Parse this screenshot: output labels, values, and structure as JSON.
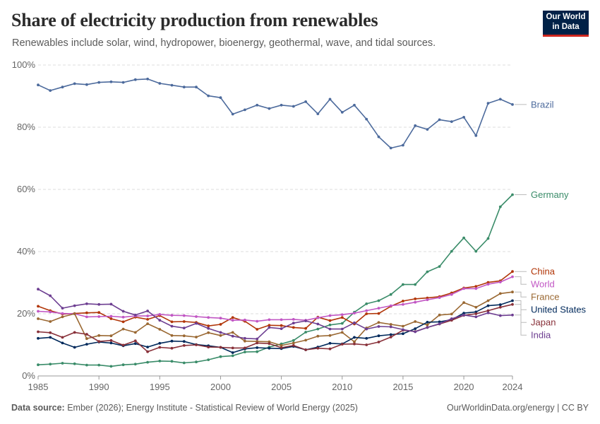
{
  "header": {
    "title": "Share of electricity production from renewables",
    "subtitle": "Renewables include solar, wind, hydropower, bioenergy, geothermal, wave, and tidal sources.",
    "logo_line1": "Our World",
    "logo_line2": "in Data"
  },
  "footer": {
    "source_label": "Data source:",
    "source_text": "Ember (2026); Energy Institute - Statistical Review of World Energy (2025)",
    "right_text": "OurWorldinData.org/energy | CC BY"
  },
  "chart_data": {
    "type": "line",
    "ylim": [
      0,
      100
    ],
    "yticks": [
      0,
      20,
      40,
      60,
      80,
      100
    ],
    "ytick_labels": [
      "0%",
      "20%",
      "40%",
      "60%",
      "80%",
      "100%"
    ],
    "xlim": [
      1985,
      2024
    ],
    "xticks": [
      1985,
      1990,
      1995,
      2000,
      2005,
      2010,
      2015,
      2020,
      2024
    ],
    "grid": true,
    "legend_placement": "right-inline",
    "x": [
      1985,
      1986,
      1987,
      1988,
      1989,
      1990,
      1991,
      1992,
      1993,
      1994,
      1995,
      1996,
      1997,
      1998,
      1999,
      2000,
      2001,
      2002,
      2003,
      2004,
      2005,
      2006,
      2007,
      2008,
      2009,
      2010,
      2011,
      2012,
      2013,
      2014,
      2015,
      2016,
      2017,
      2018,
      2019,
      2020,
      2021,
      2022,
      2023,
      2024
    ],
    "series": [
      {
        "name": "Brazil",
        "color": "#4c6a9c",
        "values": [
          93.6,
          91.8,
          92.9,
          94.0,
          93.7,
          94.4,
          94.6,
          94.4,
          95.3,
          95.5,
          94.1,
          93.5,
          92.9,
          92.9,
          90.1,
          89.5,
          84.2,
          85.6,
          87.1,
          86.0,
          87.1,
          86.7,
          88.2,
          84.3,
          89.0,
          84.8,
          87.1,
          82.6,
          76.9,
          73.3,
          74.2,
          80.5,
          79.3,
          82.4,
          81.8,
          83.2,
          77.3,
          87.7,
          89.0,
          87.3
        ]
      },
      {
        "name": "Germany",
        "color": "#3a8c69",
        "values": [
          3.6,
          3.8,
          4.1,
          3.9,
          3.5,
          3.5,
          3.1,
          3.6,
          3.8,
          4.4,
          4.8,
          4.7,
          4.2,
          4.5,
          5.2,
          6.2,
          6.5,
          7.7,
          7.8,
          9.3,
          10.3,
          11.4,
          14.1,
          15.1,
          16.4,
          16.9,
          20.5,
          23.2,
          24.2,
          26.2,
          29.4,
          29.4,
          33.5,
          35.2,
          40.1,
          44.4,
          40.1,
          44.2,
          54.4,
          58.3
        ]
      },
      {
        "name": "China",
        "color": "#b13507",
        "values": [
          22.4,
          21.0,
          19.9,
          20.1,
          20.3,
          20.4,
          18.4,
          17.4,
          18.9,
          18.2,
          19.4,
          17.4,
          17.5,
          17.2,
          16.1,
          16.6,
          18.8,
          17.6,
          15.0,
          16.3,
          16.2,
          15.6,
          15.3,
          18.9,
          17.8,
          18.8,
          16.7,
          20.0,
          20.1,
          22.4,
          24.1,
          24.8,
          25.1,
          25.5,
          26.7,
          28.3,
          28.8,
          30.1,
          30.6,
          33.6
        ]
      },
      {
        "name": "World",
        "color": "#c157c4",
        "values": [
          20.8,
          20.6,
          20.1,
          20.0,
          19.0,
          19.1,
          19.2,
          18.9,
          19.3,
          19.3,
          19.8,
          19.5,
          19.4,
          19.1,
          18.8,
          18.6,
          17.9,
          18.0,
          17.6,
          18.1,
          18.1,
          18.2,
          17.9,
          18.7,
          19.4,
          19.7,
          20.2,
          21.0,
          21.8,
          22.6,
          23.0,
          23.7,
          24.5,
          25.2,
          26.2,
          28.1,
          28.1,
          29.5,
          30.2,
          31.9
        ]
      },
      {
        "name": "France",
        "color": "#9a6832",
        "values": [
          18.4,
          17.5,
          19.0,
          20.0,
          12.0,
          13.0,
          12.9,
          15.1,
          14.0,
          16.8,
          15.0,
          13.0,
          12.9,
          12.5,
          13.9,
          13.0,
          14.0,
          11.2,
          11.1,
          11.0,
          9.8,
          10.6,
          11.5,
          12.8,
          13.0,
          14.0,
          11.0,
          15.4,
          17.2,
          16.6,
          16.0,
          17.5,
          16.4,
          19.6,
          19.9,
          23.6,
          22.1,
          24.2,
          26.5,
          27.0
        ]
      },
      {
        "name": "United States",
        "color": "#00295b",
        "values": [
          12.1,
          12.4,
          10.6,
          9.2,
          10.2,
          10.9,
          10.6,
          9.7,
          10.4,
          9.3,
          10.5,
          11.2,
          11.1,
          10.1,
          9.7,
          9.2,
          7.5,
          8.7,
          9.1,
          8.9,
          8.8,
          9.5,
          8.4,
          9.3,
          10.5,
          10.3,
          12.4,
          12.1,
          12.9,
          13.3,
          13.6,
          15.2,
          17.3,
          17.4,
          18.1,
          20.2,
          20.6,
          22.6,
          22.9,
          24.2
        ]
      },
      {
        "name": "Japan",
        "color": "#883039",
        "values": [
          14.2,
          13.9,
          12.4,
          14.0,
          13.4,
          11.1,
          11.4,
          9.9,
          11.3,
          7.8,
          9.2,
          8.9,
          9.8,
          10.0,
          9.3,
          9.2,
          9.0,
          9.0,
          10.6,
          10.4,
          9.1,
          9.8,
          8.4,
          8.9,
          8.7,
          10.2,
          10.3,
          10.0,
          10.9,
          12.5,
          14.7,
          14.3,
          15.6,
          16.7,
          17.9,
          19.5,
          20.0,
          21.0,
          22.1,
          23.0
        ]
      },
      {
        "name": "India",
        "color": "#6d3e91",
        "values": [
          27.9,
          25.8,
          21.8,
          22.6,
          23.2,
          23.0,
          23.1,
          20.8,
          19.6,
          20.9,
          17.9,
          16.0,
          15.4,
          16.9,
          15.3,
          14.0,
          12.8,
          12.1,
          11.9,
          15.6,
          15.2,
          17.0,
          17.7,
          16.7,
          15.1,
          15.1,
          17.1,
          15.1,
          15.9,
          15.8,
          14.9,
          14.2,
          15.6,
          16.8,
          18.4,
          19.6,
          19.0,
          20.3,
          19.4,
          19.6
        ]
      }
    ]
  }
}
